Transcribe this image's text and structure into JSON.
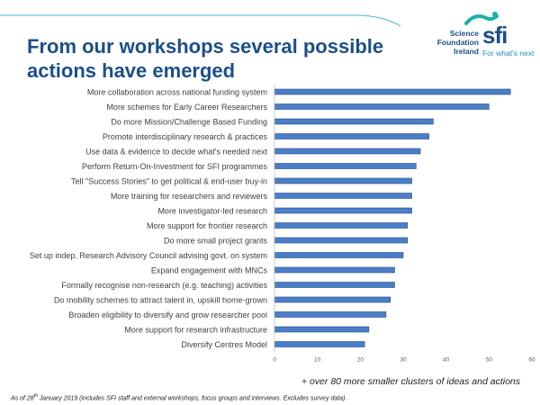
{
  "slide": {
    "title": "From our workshops several possible actions have emerged",
    "footnote_main": "+ over 80 more smaller clusters of ideas and actions",
    "footnote_prefix": "As of 28",
    "footnote_sup": "th",
    "footnote_suffix": " January 2019 (includes SFI staff and external workshops, focus groups and interviews. Excludes survey data)."
  },
  "logo": {
    "org_line1": "Science",
    "org_line2": "Foundation",
    "org_line3": "Ireland",
    "mark": "sfi",
    "tagline": "For what's next"
  },
  "colors": {
    "title": "#1b4f8a",
    "bar": "#4a7ec9",
    "bar_edge": "#2b4f82",
    "accent": "#1b8ec9",
    "header_line": "#3bb8d4"
  },
  "chart_data": {
    "type": "bar",
    "orientation": "horizontal",
    "categories": [
      "More collaboration across national funding system",
      "More schemes for Early Career Researchers",
      "Do more Mission/Challenge Based Funding",
      "Promote interdisciplinary research & practices",
      "Use data & evidence to decide what's needed next",
      "Perform Return-On-Investment for SFI programmes",
      "Tell \"Success Stories\" to get political & end-user buy-in",
      "More training for researchers and reviewers",
      "More investigator-led research",
      "More support for frontier research",
      "Do more small project grants",
      "Set up indep. Research Advisory Council advising govt. on system",
      "Expand engagement with MNCs",
      "Formally recognise non-research (e.g. teaching) activities",
      "Do mobility schemes to attract talent in, upskill home-grown",
      "Broaden eligibility to diversify and grow researcher pool",
      "More support for research infrastructure",
      "Diversify Centres Model"
    ],
    "values": [
      55,
      50,
      37,
      36,
      34,
      33,
      32,
      32,
      32,
      31,
      31,
      30,
      28,
      28,
      27,
      26,
      22,
      21
    ],
    "xlim": [
      0,
      60
    ],
    "xticks": [
      "0",
      "10",
      "20",
      "30",
      "40",
      "50",
      "60"
    ],
    "grid": false,
    "legend": "none"
  }
}
